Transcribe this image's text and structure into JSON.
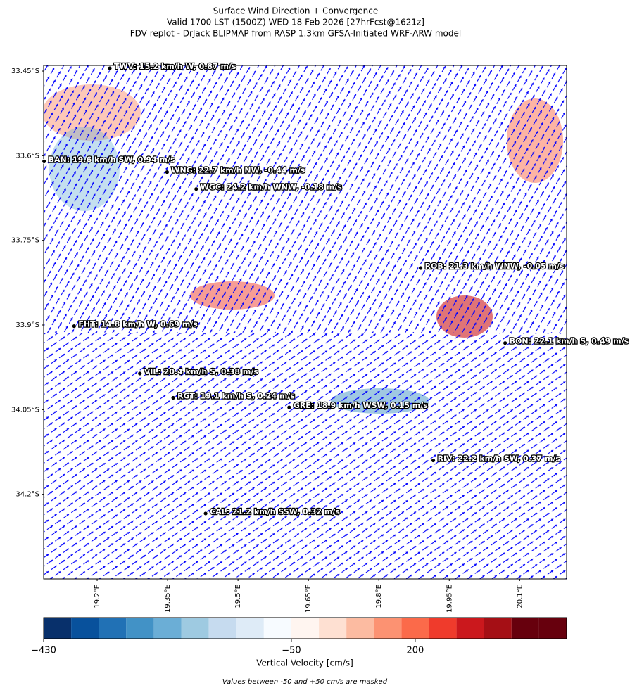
{
  "chart_data": {
    "type": "map",
    "title": [
      "Surface Wind Direction + Convergence",
      "Valid 1700 LST (1500Z) WED 18 Feb 2026 [27hrFcst@1621z]",
      "FDV replot - DrJack BLIPMAP from RASP 1.3km GFSA-Initiated WRF-ARW model"
    ],
    "xlim": [
      19.086,
      20.2
    ],
    "ylim": [
      -33.44,
      -34.35
    ],
    "xticks": [
      {
        "value": 19.2,
        "label": "19.2°E"
      },
      {
        "value": 19.35,
        "label": "19.35°E"
      },
      {
        "value": 19.5,
        "label": "19.5°E"
      },
      {
        "value": 19.65,
        "label": "19.65°E"
      },
      {
        "value": 19.8,
        "label": "19.8°E"
      },
      {
        "value": 19.95,
        "label": "19.95°E"
      },
      {
        "value": 20.1,
        "label": "20.1°E"
      }
    ],
    "yticks": [
      {
        "value": -33.45,
        "label": "33.45°S"
      },
      {
        "value": -33.6,
        "label": "33.6°S"
      },
      {
        "value": -33.75,
        "label": "33.75°S"
      },
      {
        "value": -33.9,
        "label": "33.9°S"
      },
      {
        "value": -34.05,
        "label": "34.05°S"
      },
      {
        "value": -34.2,
        "label": "34.2°S"
      }
    ],
    "stations": [
      {
        "label": "TWV: 15.2 km/h W, 0.87 m/s",
        "lon": 19.227,
        "lat": -33.445
      },
      {
        "label": "BAN: 19.6 km/h SW, 0.94 m/s",
        "lon": 19.087,
        "lat": -33.61
      },
      {
        "label": "WNG: 22.7 km/h NW, -0.44 m/s",
        "lon": 19.349,
        "lat": -33.629
      },
      {
        "label": "WGC: 24.2 km/h WNW, -0.18 m/s",
        "lon": 19.411,
        "lat": -33.659
      },
      {
        "label": "ROB: 21.3 km/h WNW, -0.05 m/s",
        "lon": 19.889,
        "lat": -33.799
      },
      {
        "label": "FHT: 14.8 km/h W, 0.69 m/s",
        "lon": 19.151,
        "lat": -33.902
      },
      {
        "label": "BON: 22.1 km/h S, 0.49 m/s",
        "lon": 20.069,
        "lat": -33.932
      },
      {
        "label": "VIL: 20.4 km/h S, 0.38 m/s",
        "lon": 19.291,
        "lat": -33.986
      },
      {
        "label": "RGT: 19.1 km/h S, 0.24 m/s",
        "lon": 19.362,
        "lat": -34.029
      },
      {
        "label": "GRE: 18.9 km/h WSW, 0.15 m/s",
        "lon": 19.609,
        "lat": -34.046
      },
      {
        "label": "RIV: 22.2 km/h SW, 0.37 m/s",
        "lon": 19.916,
        "lat": -34.14
      },
      {
        "label": "CAL: 21.2 km/h SSW, 0.32 m/s",
        "lon": 19.431,
        "lat": -34.234
      }
    ],
    "colorbar": {
      "label": "Vertical Velocity [cm/s]",
      "bounds": [
        -430,
        -388,
        -346,
        -304,
        -262,
        -220,
        -177,
        -135,
        -92,
        -50,
        50,
        93,
        136,
        179,
        221,
        264,
        307,
        350,
        393,
        436
      ],
      "colors": [
        "#08306b",
        "#08519c",
        "#2171b5",
        "#4292c6",
        "#6baed6",
        "#9ecae1",
        "#c6dbef",
        "#deebf7",
        "#f7fbff",
        "#fff5f0",
        "#fee0d2",
        "#fcbba1",
        "#fc9272",
        "#fb6a4a",
        "#ef3b2c",
        "#cb181d",
        "#a50f15",
        "#67000d",
        "#67000d"
      ],
      "ticks": [
        {
          "value": -430,
          "label": "−430"
        },
        {
          "value": -50,
          "label": "−50"
        },
        200
      ]
    },
    "note": "Values between -50 and +50 cm/s are masked"
  }
}
